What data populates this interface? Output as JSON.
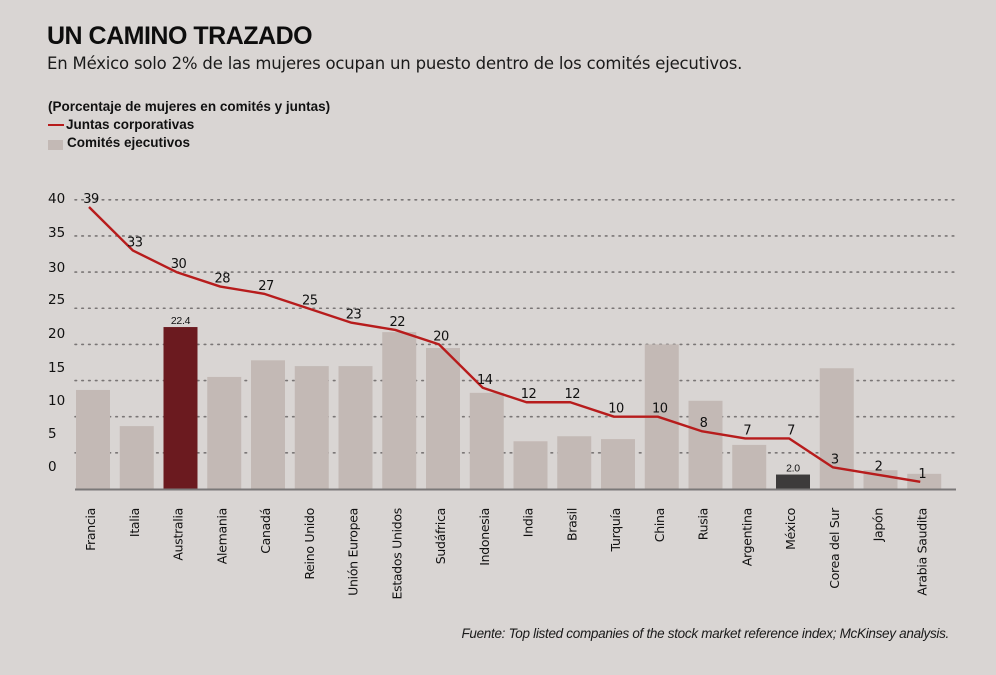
{
  "title": "UN CAMINO TRAZADO",
  "subtitle": "En México solo 2% de las mujeres ocupan un puesto dentro de los comités ejecutivos.",
  "legend": {
    "heading": "(Porcentaje de mujeres en comités y juntas)",
    "line_label": "Juntas corporativas",
    "bar_label": "Comités ejecutivos"
  },
  "source": "Fuente: Top listed companies of the stock market reference index; McKinsey analysis.",
  "colors": {
    "line": "#b71c1c",
    "bar": "#c3b9b5",
    "highlight_australia": "#6b1a1f",
    "highlight_mexico": "#3d3b3b",
    "background": "#d9d5d3"
  },
  "chart_data": {
    "type": "bar",
    "title": "UN CAMINO TRAZADO",
    "subtitle": "En México solo 2% de las mujeres ocupan un puesto dentro de los comités ejecutivos.",
    "ylabel": "Porcentaje de mujeres en comités y juntas",
    "xlabel": "",
    "ylim": [
      0,
      40
    ],
    "yticks": [
      40,
      35,
      30,
      25,
      20,
      15,
      10,
      5,
      0
    ],
    "grid": true,
    "legend_position": "top-left",
    "categories": [
      "Francia",
      "Italia",
      "Australia",
      "Alemania",
      "Canadá",
      "Reino Unido",
      "Unión Europea",
      "Estados Unidos",
      "Sudáfrica",
      "Indonesia",
      "India",
      "Brasil",
      "Turquía",
      "China",
      "Rusia",
      "Argentina",
      "México",
      "Corea del Sur",
      "Japón",
      "Arabia Saudita"
    ],
    "series": [
      {
        "name": "Comités ejecutivos",
        "type": "bar",
        "values": [
          13.7,
          8.7,
          22.4,
          15.5,
          17.8,
          17.0,
          17.0,
          21.7,
          19.5,
          13.3,
          6.6,
          7.3,
          6.9,
          20.0,
          12.2,
          6.1,
          2.0,
          16.7,
          2.6,
          2.1
        ],
        "labels": {
          "2": "22.4",
          "16": "2.0"
        },
        "highlight": {
          "2": "highlight_australia",
          "16": "highlight_mexico"
        }
      },
      {
        "name": "Juntas corporativas",
        "type": "line",
        "values": [
          39,
          33,
          30,
          28,
          27,
          25,
          23,
          22,
          20,
          14,
          12,
          12,
          10,
          10,
          8,
          7,
          7,
          3,
          2,
          1
        ]
      }
    ]
  }
}
